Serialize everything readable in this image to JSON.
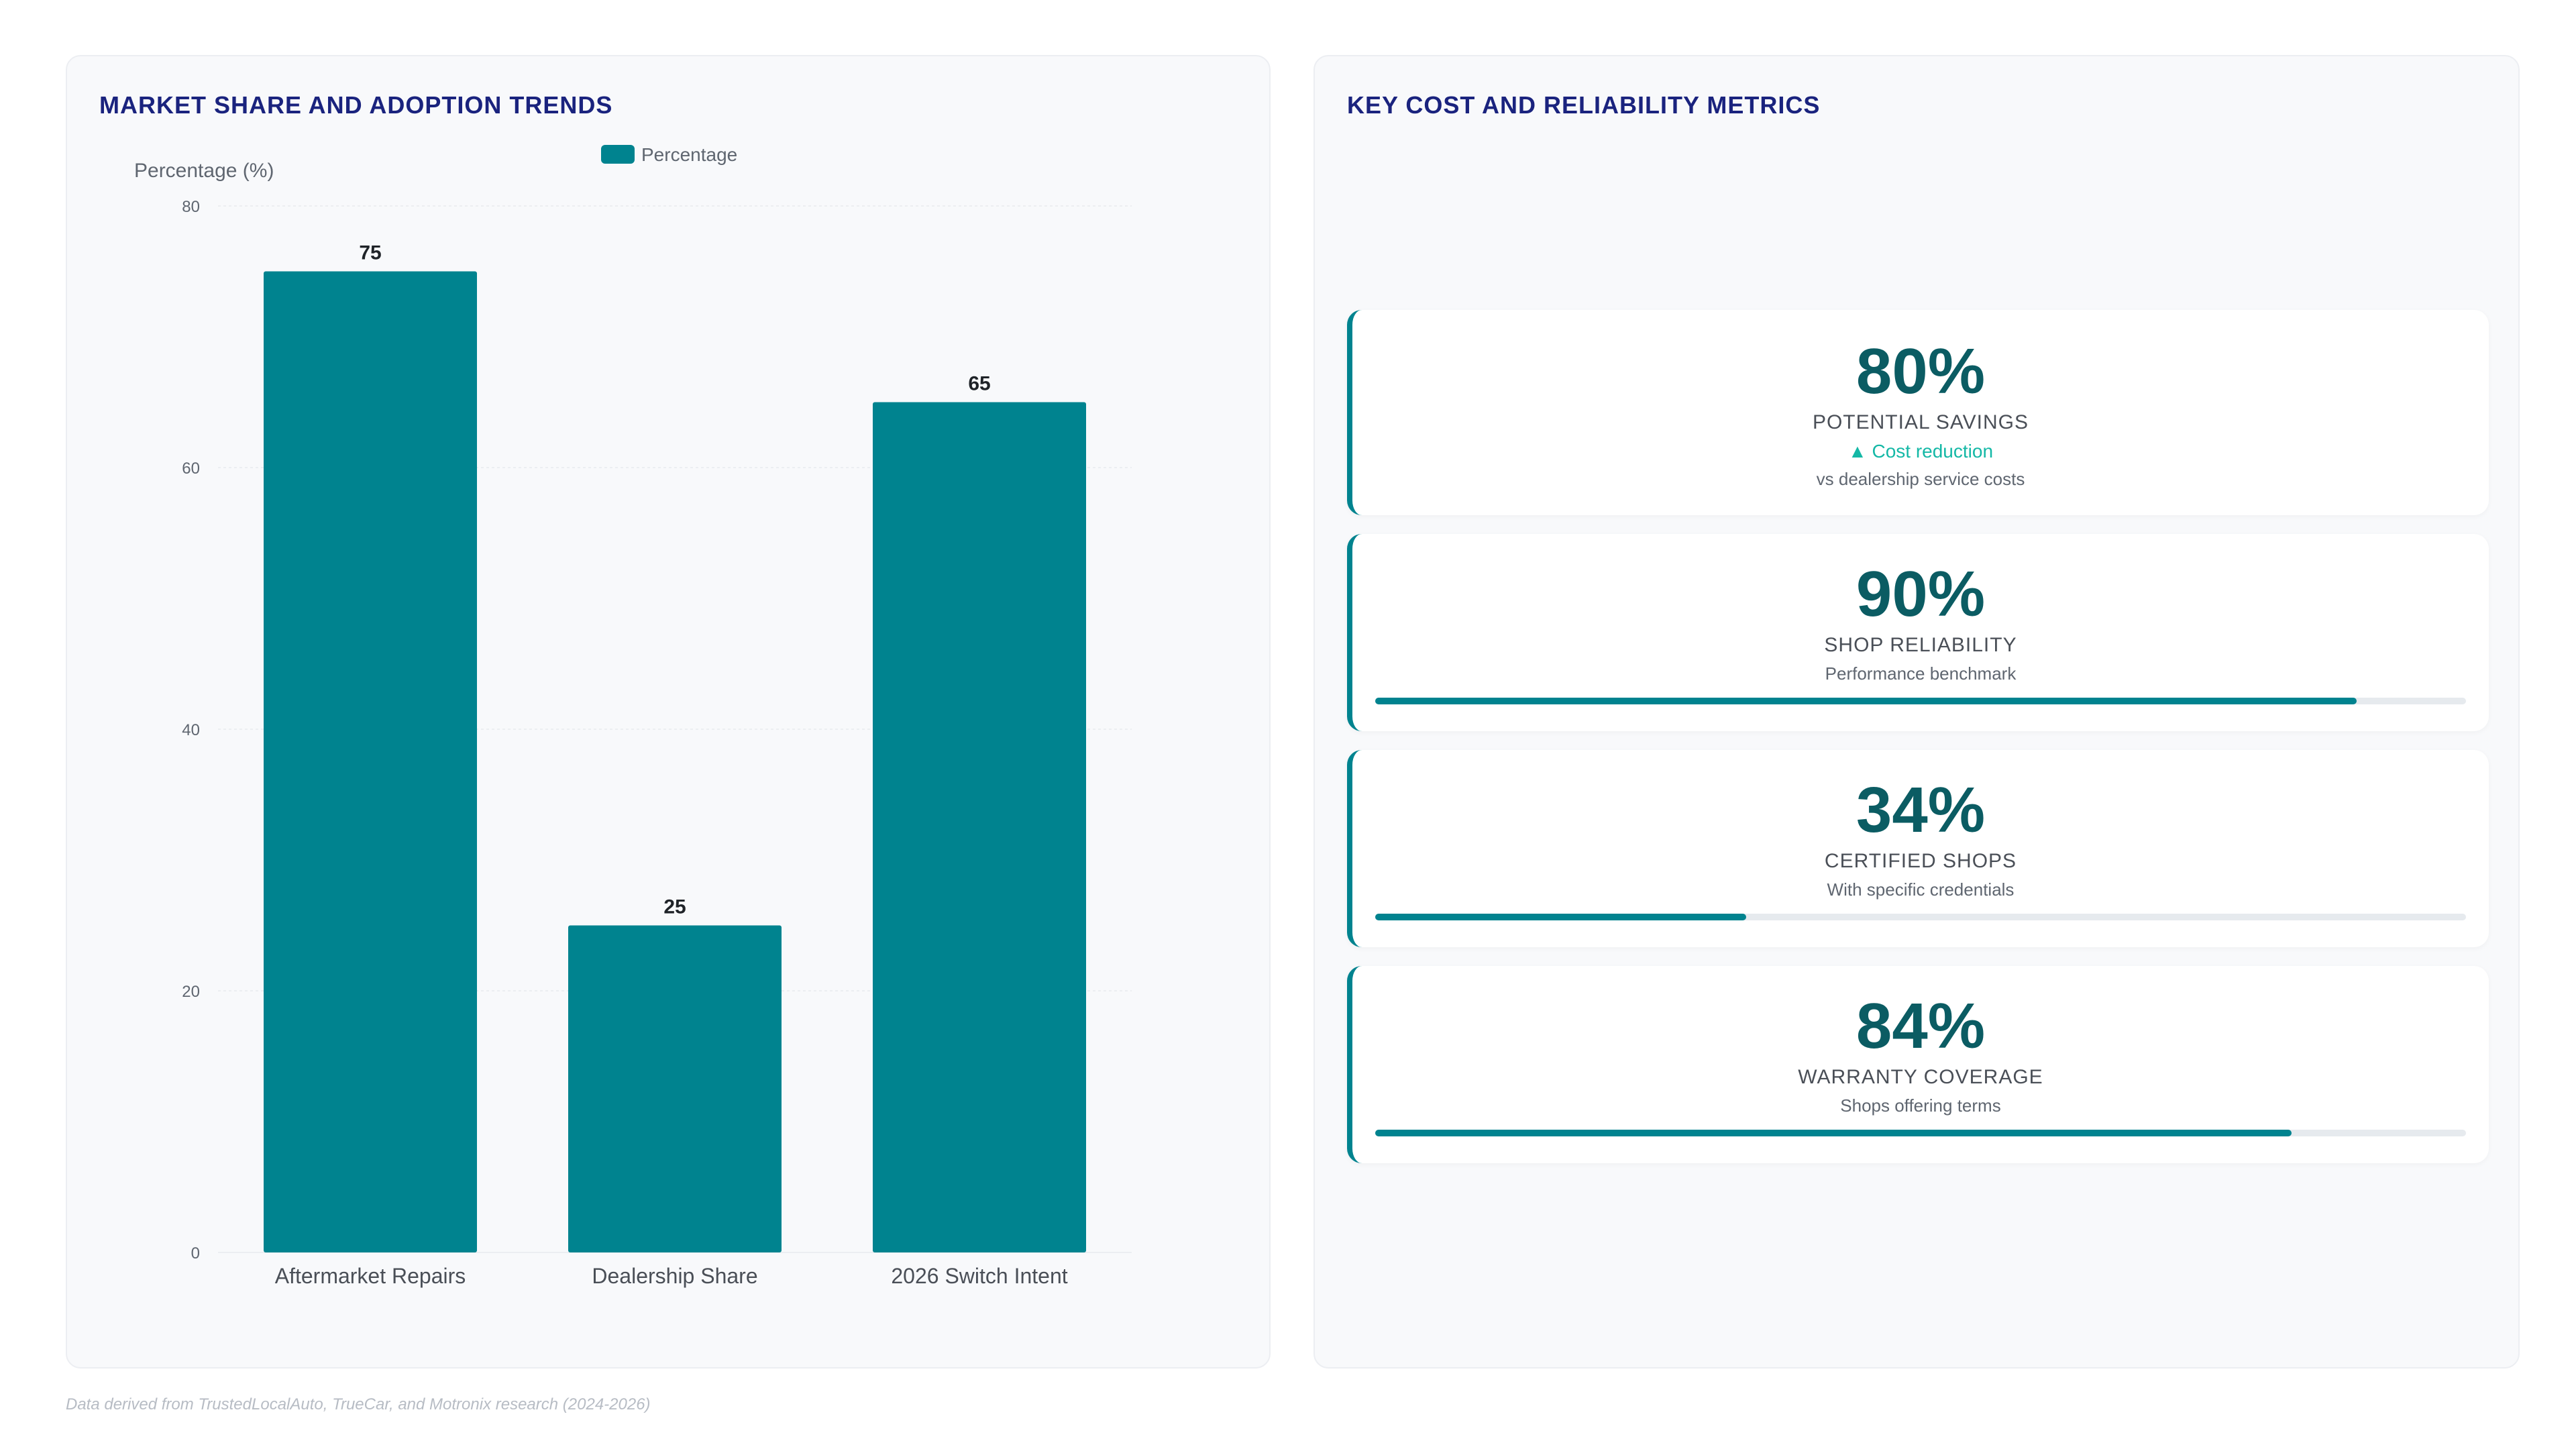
{
  "left_panel": {
    "title": "MARKET SHARE AND ADOPTION TRENDS"
  },
  "right_panel": {
    "title": "KEY COST AND RELIABILITY METRICS"
  },
  "chart_data": {
    "type": "bar",
    "categories": [
      "Aftermarket Repairs",
      "Dealership Share",
      "2026 Switch Intent"
    ],
    "series": [
      {
        "name": "Percentage",
        "values": [
          75,
          25,
          65
        ],
        "color": "#00838f"
      }
    ],
    "ylabel": "Percentage (%)",
    "xlabel": "",
    "ylim": [
      0,
      80
    ],
    "yticks": [
      0,
      20,
      40,
      60,
      80
    ],
    "legend": "top-center",
    "grid": true,
    "data_labels": true
  },
  "metrics": [
    {
      "value": "80%",
      "label": "POTENTIAL SAVINGS",
      "trend": "▲ Cost reduction",
      "note": "vs dealership service costs"
    },
    {
      "value": "90%",
      "label": "SHOP RELIABILITY",
      "note": "Performance benchmark",
      "progress": 0.9
    },
    {
      "value": "34%",
      "label": "CERTIFIED SHOPS",
      "note": "With specific credentials",
      "progress": 0.34
    },
    {
      "value": "84%",
      "label": "WARRANTY COVERAGE",
      "note": "Shops offering terms",
      "progress": 0.84
    }
  ],
  "footer": "Data derived from TrustedLocalAuto, TrueCar, and Motronix research (2024-2026)",
  "colors": {
    "accent": "#00838f",
    "title": "#1a237e",
    "value": "#0b5c63",
    "trend": "#14b8a6"
  }
}
